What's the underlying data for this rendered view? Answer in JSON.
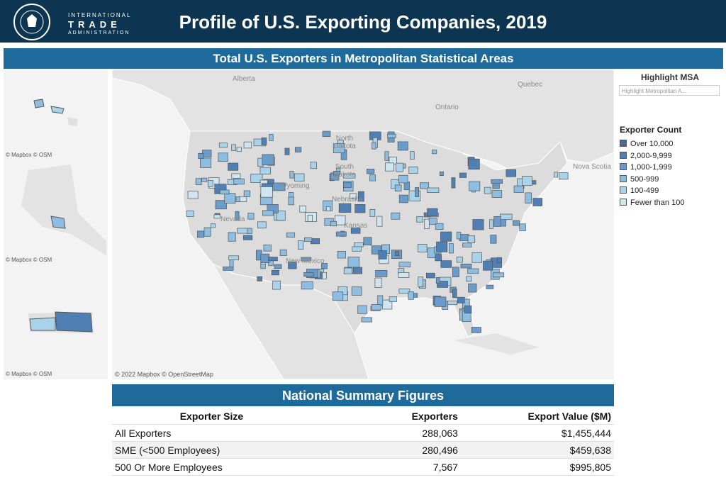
{
  "header": {
    "logo_lines": [
      "INTERNATIONAL",
      "TRADE",
      "ADMINISTRATION"
    ],
    "title": "Profile of U.S. Exporting Companies, 2019"
  },
  "map": {
    "title": "Total U.S. Exporters in Metropolitan Statistical Areas",
    "labels": [
      "Alberta",
      "Quebec",
      "Ontario",
      "North Dakota",
      "South Dakota",
      "Nebraska",
      "Kansas",
      "Nevada",
      "Wyoming",
      "New Mexico",
      "Nova Scotia"
    ],
    "inset_credits": [
      "© Mapbox © OSM",
      "© Mapbox © OSM",
      "© Mapbox © OSM"
    ],
    "credit": "© 2022 Mapbox © OpenStreetMap"
  },
  "highlight": {
    "title": "Highlight MSA",
    "placeholder": "Highlight Metropolitan A..."
  },
  "legend": {
    "title": "Exporter Count",
    "items": [
      "Over 10,000",
      "2,000-9,999",
      "1,000-1,999",
      "500-999",
      "100-499",
      "Fewer than 100"
    ]
  },
  "table": {
    "title": "National Summary Figures",
    "columns": [
      "Exporter Size",
      "Exporters",
      "Export Value ($M)"
    ],
    "rows": [
      [
        "All Exporters",
        "288,063",
        "$1,455,444"
      ],
      [
        "SME (<500 Employees)",
        "280,496",
        "$459,638"
      ],
      [
        "500 Or More Employees",
        "7,567",
        "$995,805"
      ]
    ]
  }
}
